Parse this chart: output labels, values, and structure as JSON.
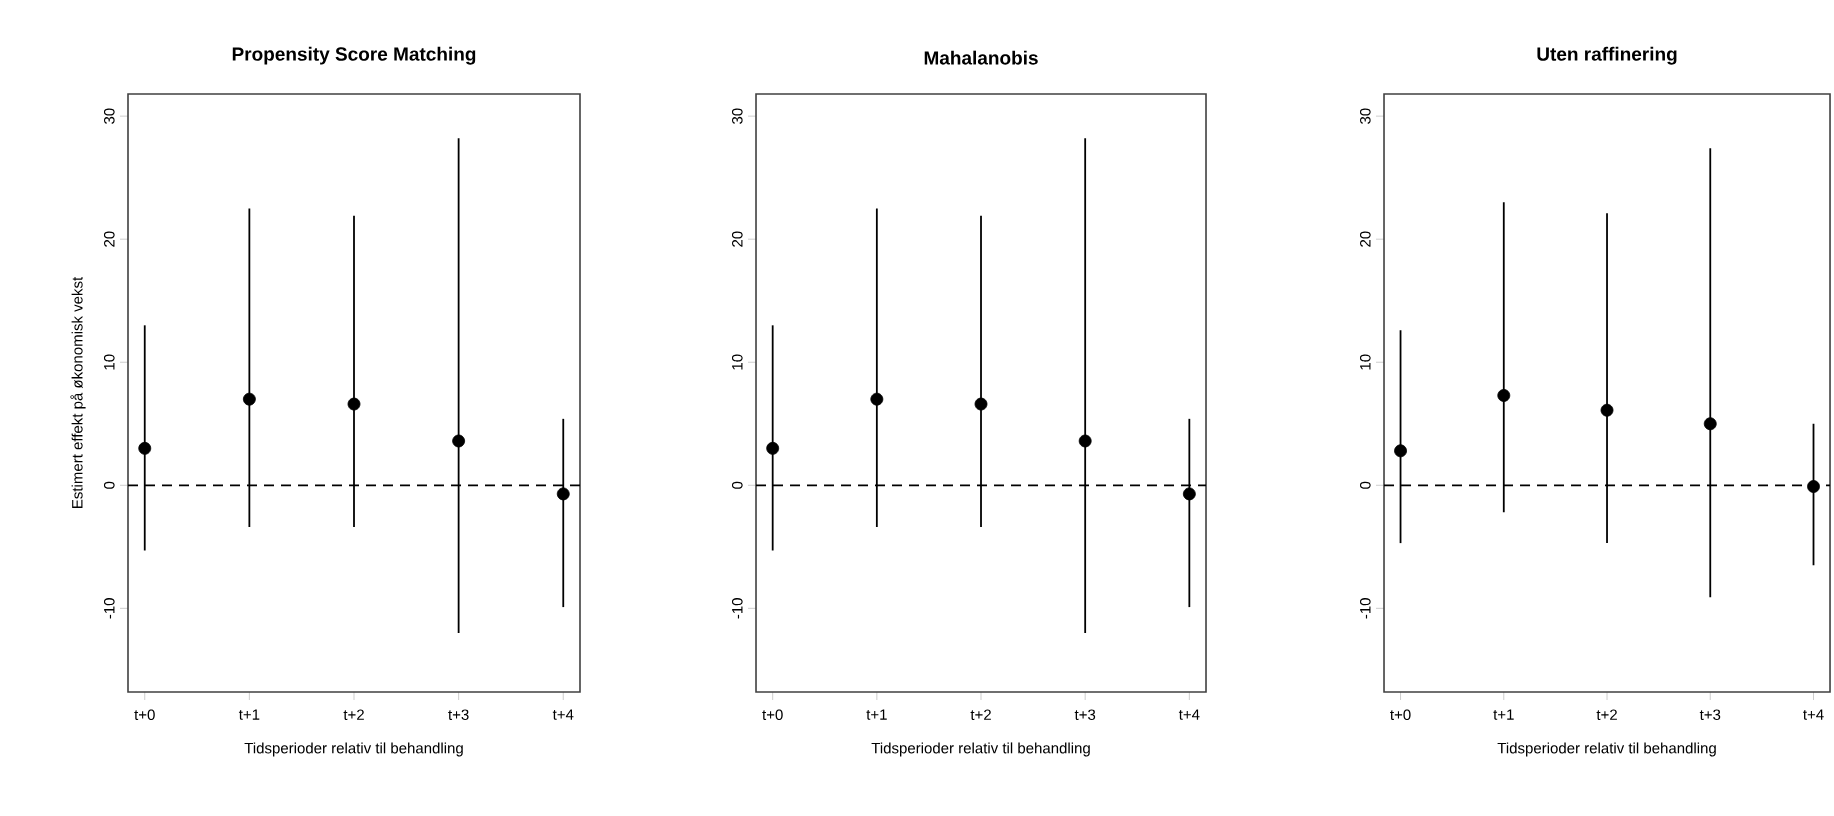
{
  "chart_data": [
    {
      "type": "scatter",
      "title": "Propensity Score Matching",
      "xlabel": "Tidsperioder relativ til behandling",
      "ylabel": "Estimert effekt på økonomisk vekst",
      "categories": [
        "t+0",
        "t+1",
        "t+2",
        "t+3",
        "t+4"
      ],
      "ylim": [
        -16.8,
        31.8
      ],
      "yticks": [
        -10,
        0,
        10,
        20,
        30
      ],
      "marker": "circle",
      "grid": false,
      "series": [
        {
          "color": "#000000",
          "values": [
            3.0,
            7.0,
            6.6,
            3.6,
            -0.7
          ],
          "errors": [
            [
              -5.3,
              13.0
            ],
            [
              -3.4,
              22.5
            ],
            [
              -3.4,
              21.9
            ],
            [
              -12.0,
              28.2
            ],
            [
              -9.9,
              5.4
            ]
          ]
        }
      ],
      "ref_lines": [
        {
          "axis": "y",
          "value": 0,
          "line_style": "dashed",
          "color": "#000000"
        }
      ]
    },
    {
      "type": "scatter",
      "title": "Mahalanobis",
      "xlabel": "Tidsperioder relativ til behandling",
      "categories": [
        "t+0",
        "t+1",
        "t+2",
        "t+3",
        "t+4"
      ],
      "ylim": [
        -16.8,
        31.8
      ],
      "yticks": [
        -10,
        0,
        10,
        20,
        30
      ],
      "marker": "circle",
      "grid": false,
      "series": [
        {
          "color": "#000000",
          "values": [
            3.0,
            7.0,
            6.6,
            3.6,
            -0.7
          ],
          "errors": [
            [
              -5.3,
              13.0
            ],
            [
              -3.4,
              22.5
            ],
            [
              -3.4,
              21.9
            ],
            [
              -12.0,
              28.2
            ],
            [
              -9.9,
              5.4
            ]
          ]
        }
      ],
      "ref_lines": [
        {
          "axis": "y",
          "value": 0,
          "line_style": "dashed",
          "color": "#000000"
        }
      ]
    },
    {
      "type": "scatter",
      "title": "Uten raffinering",
      "xlabel": "Tidsperioder relativ til behandling",
      "categories": [
        "t+0",
        "t+1",
        "t+2",
        "t+3",
        "t+4"
      ],
      "ylim": [
        -16.8,
        31.8
      ],
      "yticks": [
        -10,
        0,
        10,
        20,
        30
      ],
      "marker": "circle",
      "grid": false,
      "series": [
        {
          "color": "#000000",
          "values": [
            2.8,
            7.3,
            6.1,
            5.0,
            -0.1
          ],
          "errors": [
            [
              -4.7,
              12.6
            ],
            [
              -2.2,
              23.0
            ],
            [
              -4.7,
              22.1
            ],
            [
              -9.1,
              27.4
            ],
            [
              -6.5,
              5.0
            ]
          ]
        }
      ],
      "ref_lines": [
        {
          "axis": "y",
          "value": 0,
          "line_style": "dashed",
          "color": "#000000"
        }
      ]
    }
  ]
}
